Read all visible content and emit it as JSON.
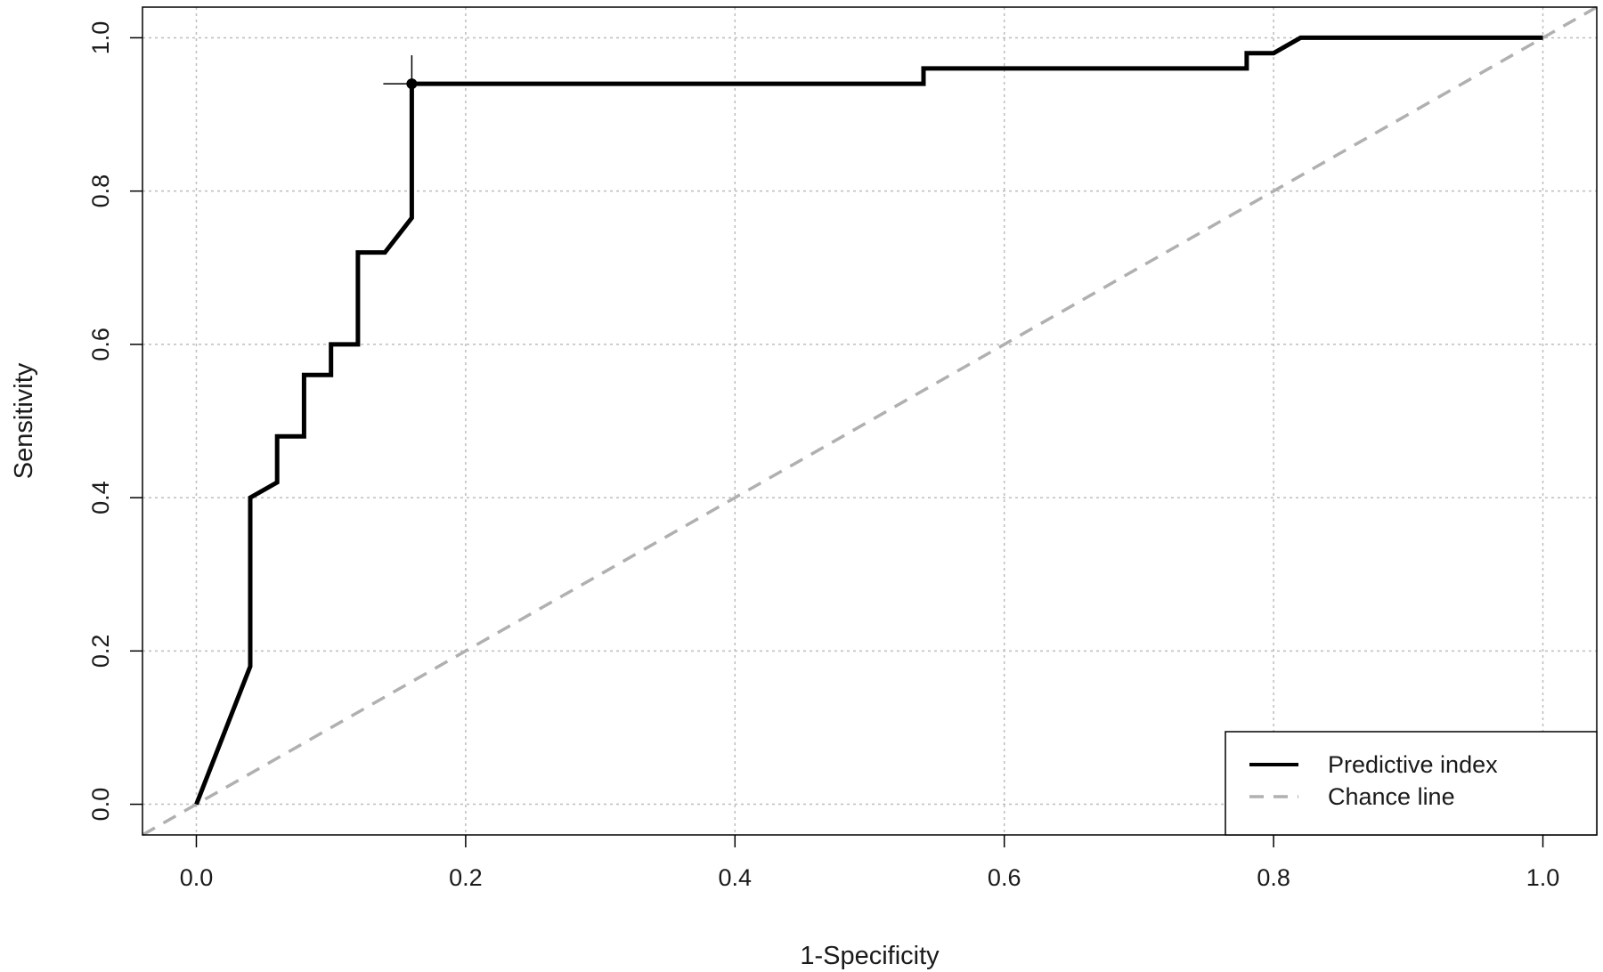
{
  "chart_data": {
    "type": "line",
    "title": "",
    "xlabel": "1-Specificity",
    "ylabel": "Sensitivity",
    "xlim": [
      -0.04,
      1.04
    ],
    "ylim": [
      -0.04,
      1.04
    ],
    "xticks": [
      0.0,
      0.2,
      0.4,
      0.6,
      0.8,
      1.0
    ],
    "yticks": [
      0.0,
      0.2,
      0.4,
      0.6,
      0.8,
      1.0
    ],
    "xtick_labels": [
      "0.0",
      "0.2",
      "0.4",
      "0.6",
      "0.8",
      "1.0"
    ],
    "ytick_labels": [
      "0.0",
      "0.2",
      "0.4",
      "0.6",
      "0.8",
      "1.0"
    ],
    "grid": true,
    "legend_position": "bottom-right",
    "series": [
      {
        "name": "Predictive index",
        "color": "#000000",
        "style": "solid",
        "x": [
          0.0,
          0.04,
          0.04,
          0.06,
          0.06,
          0.08,
          0.08,
          0.1,
          0.1,
          0.12,
          0.12,
          0.14,
          0.16,
          0.16,
          0.54,
          0.54,
          0.78,
          0.78,
          0.8,
          0.82,
          1.0
        ],
        "y": [
          0.0,
          0.18,
          0.4,
          0.42,
          0.48,
          0.48,
          0.56,
          0.56,
          0.6,
          0.6,
          0.72,
          0.72,
          0.765,
          0.94,
          0.94,
          0.96,
          0.96,
          0.98,
          0.98,
          1.0,
          1.0
        ]
      },
      {
        "name": "Chance line",
        "color": "#b0b0b0",
        "style": "dashed",
        "x": [
          -0.04,
          1.04
        ],
        "y": [
          -0.04,
          1.04
        ]
      }
    ],
    "annotations": [
      {
        "type": "cutoff-point",
        "x": 0.16,
        "y": 0.94
      }
    ]
  }
}
